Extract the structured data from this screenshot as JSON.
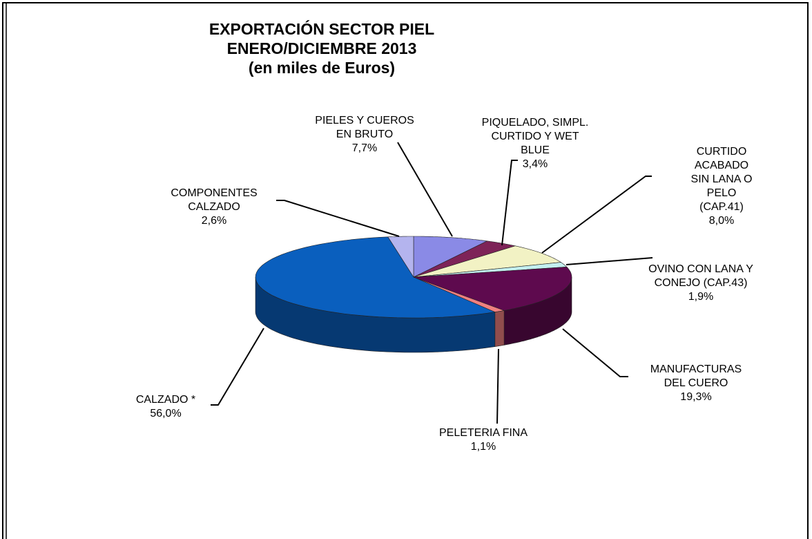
{
  "chart_data": {
    "type": "pie3d",
    "title": "EXPORTACIÓN SECTOR PIEL\nENERO/DICIEMBRE 2013\n(en miles de Euros)",
    "categories": [
      "PIELES Y CUEROS\nEN BRUTO",
      "PIQUELADO, SIMPL.\nCURTIDO Y WET\nBLUE",
      "CURTIDO ACABADO\nSIN LANA O PELO\n(CAP.41)",
      "OVINO CON LANA Y\nCONEJO (CAP.43)",
      "MANUFACTURAS\nDEL CUERO",
      "PELETERIA FINA",
      "CALZADO  *",
      "COMPONENTES\nCALZADO"
    ],
    "values": [
      7.7,
      3.4,
      8.0,
      1.9,
      19.3,
      1.1,
      56.0,
      2.6
    ],
    "value_labels": [
      "7,7%",
      "3,4%",
      "8,0%",
      "1,9%",
      "19,3%",
      "1,1%",
      "56,0%",
      "2,6%"
    ],
    "colors": [
      "#8a8ae6",
      "#7e2358",
      "#f2f2c4",
      "#c4f0f0",
      "#5e0a4e",
      "#f08080",
      "#0a5fbe",
      "#b4b4ee"
    ]
  }
}
